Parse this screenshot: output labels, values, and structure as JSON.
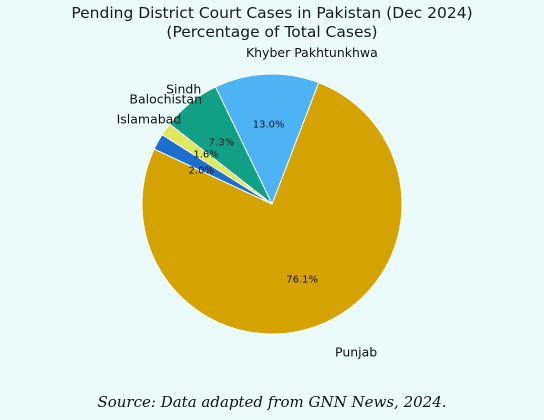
{
  "chart_data": {
    "type": "pie",
    "title": "Pending District Court Cases in Pakistan (Dec 2024)",
    "subtitle": "(Percentage of Total Cases)",
    "start_angle_deg": 155,
    "direction": "counterclockwise",
    "slices": [
      {
        "label": "Punjab",
        "value": 76.1,
        "value_label": "76.1%",
        "color": "#d4a300"
      },
      {
        "label": "Khyber Pakhtunkhwa",
        "value": 13.0,
        "value_label": "13.0%",
        "color": "#4db3f5"
      },
      {
        "label": "Sindh",
        "value": 7.3,
        "value_label": "7.3%",
        "color": "#10a085"
      },
      {
        "label": "Balochistan",
        "value": 1.6,
        "value_label": "1.6%",
        "color": "#dde85a"
      },
      {
        "label": "Islamabad",
        "value": 2.0,
        "value_label": "2.0%",
        "color": "#1a6fcf"
      }
    ]
  },
  "source": "Source: Data adapted from GNN News, 2024."
}
